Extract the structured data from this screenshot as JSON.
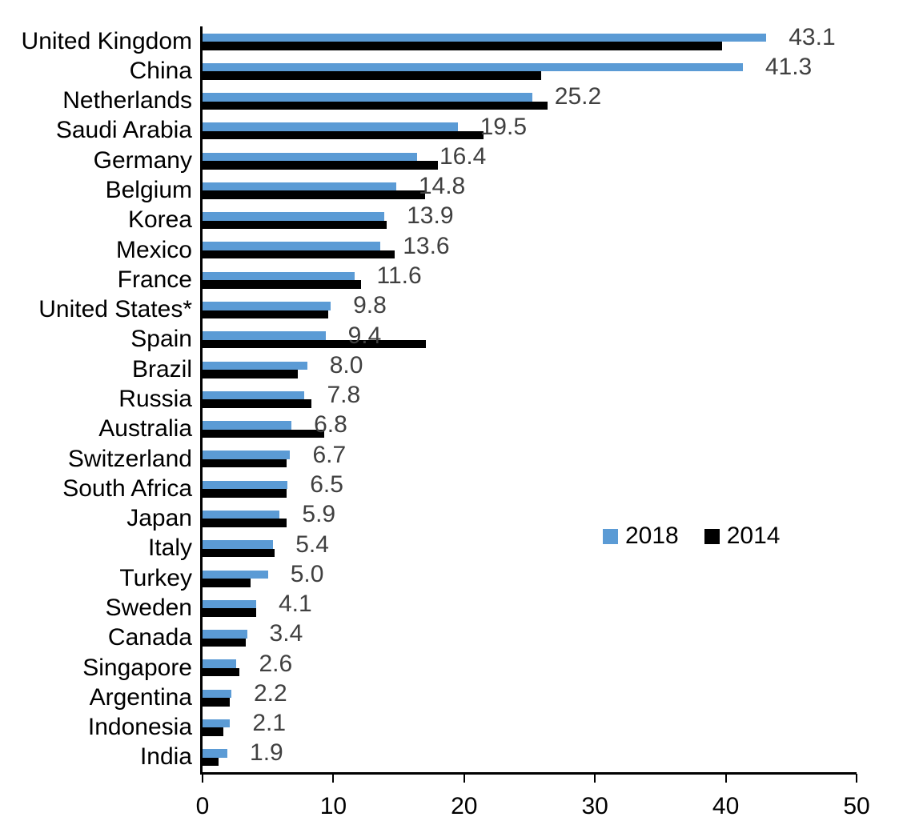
{
  "chart_data": {
    "type": "bar",
    "orientation": "horizontal",
    "title": "",
    "xlabel": "",
    "ylabel": "",
    "grid": false,
    "legend_position": "middle-right",
    "xlim": [
      0,
      50
    ],
    "x_ticks": [
      "0",
      "10",
      "20",
      "30",
      "40",
      "50"
    ],
    "axis_color": "#000000",
    "data_label_color": "#404040",
    "categories": [
      "United Kingdom",
      "China",
      "Netherlands",
      "Saudi Arabia",
      "Germany",
      "Belgium",
      "Korea",
      "Mexico",
      "France",
      "United States*",
      "Spain",
      "Brazil",
      "Russia",
      "Australia",
      "Switzerland",
      "South Africa",
      "Japan",
      "Italy",
      "Turkey",
      "Sweden",
      "Canada",
      "Singapore",
      "Argentina",
      "Indonesia",
      "India"
    ],
    "series": [
      {
        "name": "2018",
        "color": "#5B9BD5",
        "values": [
          43.1,
          41.3,
          25.2,
          19.5,
          16.4,
          14.8,
          13.9,
          13.6,
          11.6,
          9.8,
          9.4,
          8.0,
          7.8,
          6.8,
          6.7,
          6.5,
          5.9,
          5.4,
          5.0,
          4.1,
          3.4,
          2.6,
          2.2,
          2.1,
          1.9
        ],
        "labels": [
          "43.1",
          "41.3",
          "25.2",
          "19.5",
          "16.4",
          "14.8",
          "13.9",
          "13.6",
          "11.6",
          "9.8",
          "9.4",
          "8.0",
          "7.8",
          "6.8",
          "6.7",
          "6.5",
          "5.9",
          "5.4",
          "5.0",
          "4.1",
          "3.4",
          "2.6",
          "2.2",
          "2.1",
          "1.9"
        ]
      },
      {
        "name": "2014",
        "color": "#000000",
        "values": [
          39.7,
          25.9,
          26.4,
          21.5,
          18.0,
          17.0,
          14.1,
          14.7,
          12.1,
          9.6,
          17.1,
          7.3,
          8.3,
          9.3,
          6.4,
          6.4,
          6.4,
          5.5,
          3.7,
          4.1,
          3.3,
          2.8,
          2.1,
          1.6,
          1.2
        ]
      }
    ]
  }
}
